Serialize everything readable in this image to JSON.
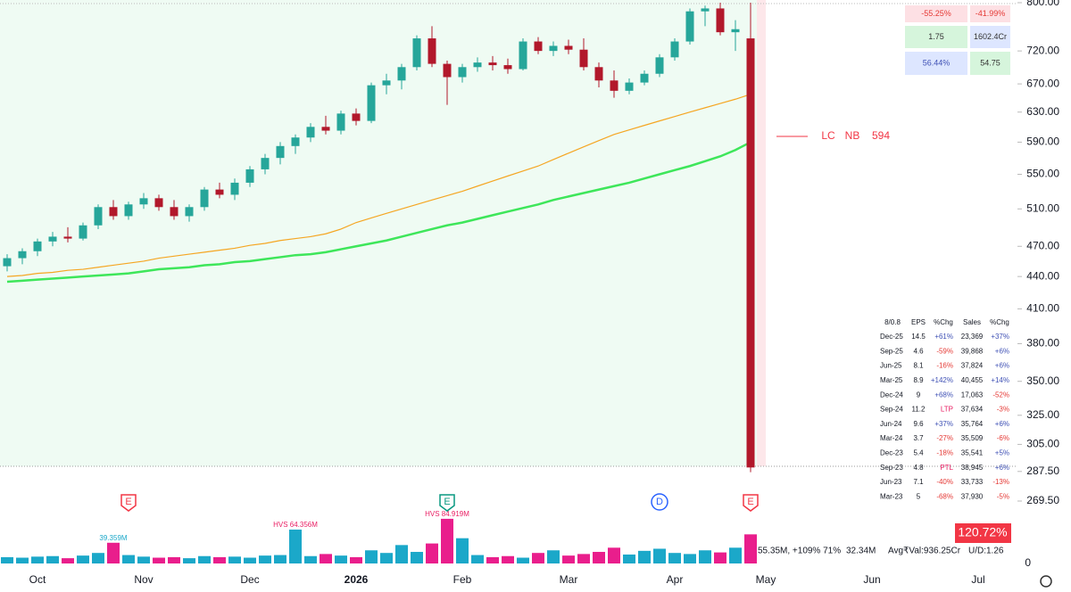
{
  "chart_data": {
    "type": "candlestick",
    "log": true,
    "ylim": [
      269.5,
      800
    ],
    "yticks": [
      {
        "value": 800,
        "label": "800.00"
      },
      {
        "value": 720,
        "label": "720.00"
      },
      {
        "value": 670,
        "label": "670.00"
      },
      {
        "value": 630,
        "label": "630.00"
      },
      {
        "value": 590,
        "label": "590.00"
      },
      {
        "value": 550,
        "label": "550.00"
      },
      {
        "value": 510,
        "label": "510.00"
      },
      {
        "value": 470,
        "label": "470.00"
      },
      {
        "value": 440,
        "label": "440.00"
      },
      {
        "value": 410,
        "label": "410.00"
      },
      {
        "value": 380,
        "label": "380.00"
      },
      {
        "value": 350,
        "label": "350.00"
      },
      {
        "value": 325,
        "label": "325.00"
      },
      {
        "value": 305,
        "label": "305.00"
      },
      {
        "value": 287.5,
        "label": "287.50"
      },
      {
        "value": 269.5,
        "label": "269.50"
      }
    ],
    "categories": [
      null,
      null,
      "Oct",
      null,
      null,
      null,
      null,
      null,
      null,
      "Nov",
      null,
      null,
      null,
      null,
      null,
      null,
      "Dec",
      null,
      null,
      null,
      null,
      null,
      null,
      "2026",
      null,
      null,
      null,
      null,
      null,
      null,
      "Feb",
      null,
      null,
      null,
      null,
      null,
      null,
      "Mar",
      null,
      null,
      null,
      null,
      null,
      null,
      "Apr",
      null,
      null,
      null,
      null,
      null,
      "May",
      null,
      null,
      null,
      null,
      null,
      null,
      "Jun",
      null,
      null,
      null,
      null,
      null,
      null,
      "Jul",
      null
    ],
    "up_color": "#26a69a",
    "down_color": "#b2182b",
    "open": [
      450,
      458,
      465,
      475,
      480,
      478,
      492,
      512,
      502,
      515,
      522,
      512,
      502,
      512,
      532,
      526,
      540,
      556,
      570,
      585,
      596,
      610,
      605,
      628,
      618,
      668,
      675,
      695,
      740,
      700,
      680,
      695,
      702,
      698,
      692,
      735,
      720,
      728,
      722,
      695,
      675,
      660,
      672,
      685,
      710,
      735,
      785,
      790,
      750,
      740,
      null,
      null,
      null,
      null,
      null,
      null,
      null,
      null,
      null,
      null,
      null,
      null,
      null,
      null,
      null,
      null
    ],
    "high": [
      462,
      468,
      478,
      485,
      490,
      495,
      515,
      520,
      518,
      528,
      526,
      520,
      515,
      535,
      540,
      545,
      560,
      575,
      590,
      600,
      615,
      625,
      632,
      635,
      672,
      685,
      700,
      745,
      760,
      705,
      700,
      710,
      712,
      708,
      740,
      742,
      735,
      738,
      740,
      702,
      690,
      678,
      690,
      715,
      740,
      790,
      795,
      800,
      770,
      800,
      null,
      null,
      null,
      null,
      null,
      null,
      null,
      null,
      null,
      null,
      null,
      null,
      null,
      null,
      null,
      null
    ],
    "low": [
      445,
      452,
      460,
      470,
      474,
      476,
      488,
      498,
      498,
      510,
      508,
      498,
      496,
      508,
      522,
      520,
      535,
      550,
      562,
      575,
      590,
      600,
      600,
      612,
      615,
      655,
      662,
      690,
      695,
      640,
      672,
      688,
      690,
      685,
      690,
      715,
      712,
      715,
      690,
      665,
      650,
      655,
      668,
      680,
      705,
      730,
      760,
      745,
      720,
      287,
      null,
      null,
      null,
      null,
      null,
      null,
      null,
      null,
      null,
      null,
      null,
      null,
      null,
      null,
      null,
      null
    ],
    "close": [
      458,
      465,
      475,
      480,
      478,
      492,
      512,
      502,
      515,
      522,
      512,
      502,
      512,
      532,
      526,
      540,
      556,
      570,
      585,
      596,
      610,
      605,
      628,
      618,
      668,
      675,
      695,
      740,
      700,
      680,
      695,
      702,
      698,
      692,
      735,
      720,
      728,
      722,
      695,
      675,
      660,
      672,
      685,
      710,
      735,
      785,
      790,
      750,
      755,
      290,
      null,
      null,
      null,
      null,
      null,
      null,
      null,
      null,
      null,
      null,
      null,
      null,
      null,
      null,
      null,
      null
    ],
    "series": [
      {
        "color": "#f5a623",
        "values": [
          440,
          441,
          443,
          444,
          446,
          447,
          449,
          451,
          453,
          455,
          458,
          460,
          462,
          464,
          466,
          468,
          471,
          473,
          476,
          478,
          480,
          483,
          488,
          495,
          500,
          505,
          510,
          515,
          520,
          525,
          530,
          536,
          542,
          548,
          554,
          560,
          568,
          576,
          584,
          592,
          600,
          606,
          612,
          618,
          624,
          630,
          636,
          642,
          648,
          655,
          null,
          null,
          null,
          null,
          null,
          null,
          null,
          null,
          null,
          null,
          null,
          null,
          null,
          null,
          null,
          null
        ]
      },
      {
        "color": "#3ee65a",
        "values": [
          435,
          436,
          437,
          438,
          439,
          440,
          441,
          442,
          443,
          445,
          447,
          448,
          449,
          451,
          452,
          454,
          455,
          457,
          459,
          461,
          462,
          464,
          467,
          470,
          473,
          476,
          480,
          484,
          488,
          492,
          495,
          499,
          503,
          507,
          511,
          515,
          520,
          524,
          528,
          532,
          536,
          540,
          545,
          550,
          555,
          560,
          566,
          572,
          580,
          590,
          null,
          null,
          null,
          null,
          null,
          null,
          null,
          null,
          null,
          null,
          null,
          null,
          null,
          null,
          null,
          null
        ]
      }
    ],
    "volume": {
      "ylim": [
        0,
        100
      ],
      "yticks": [
        0
      ],
      "up_color": "#1ba8c9",
      "down_color": "#e91e8c",
      "values": [
        12,
        11,
        13,
        14,
        10,
        15,
        20,
        39.359,
        16,
        13,
        11,
        12,
        10,
        14,
        12,
        13,
        11,
        15,
        16,
        64.356,
        14,
        18,
        15,
        12,
        25,
        20,
        35,
        22,
        38,
        84.919,
        48,
        16,
        12,
        14,
        11,
        20,
        25,
        15,
        18,
        22,
        30,
        17,
        24,
        28,
        20,
        18,
        25,
        21,
        30,
        55.35,
        null,
        null,
        null,
        null,
        null,
        null,
        null,
        null,
        null,
        null,
        null,
        null,
        null,
        null,
        null,
        null
      ],
      "value_labels": [
        null,
        null,
        null,
        null,
        null,
        null,
        null,
        "39.359M",
        null,
        null,
        null,
        null,
        null,
        null,
        null,
        null,
        null,
        null,
        null,
        "HVS 64.356M",
        null,
        null,
        null,
        null,
        null,
        null,
        null,
        null,
        null,
        "HVS 84.919M",
        null,
        null,
        null,
        null,
        null,
        null,
        null,
        null,
        null,
        null,
        null,
        null,
        null,
        null,
        null,
        null,
        null,
        null,
        null,
        null,
        null,
        null,
        null,
        null,
        null,
        null,
        null,
        null,
        null,
        null,
        null,
        null,
        null,
        null,
        null,
        null
      ]
    },
    "event_labels": [
      null,
      null,
      null,
      null,
      null,
      null,
      null,
      null,
      "E",
      null,
      null,
      null,
      null,
      null,
      null,
      null,
      null,
      null,
      null,
      null,
      null,
      null,
      null,
      null,
      null,
      null,
      null,
      null,
      null,
      "E",
      null,
      null,
      null,
      null,
      null,
      null,
      null,
      null,
      null,
      null,
      null,
      null,
      null,
      "D",
      null,
      null,
      null,
      null,
      null,
      "E",
      null,
      null,
      null,
      null,
      null,
      null,
      null,
      null,
      null,
      null,
      null,
      null,
      null,
      null,
      null,
      null
    ],
    "annotation": [
      "LC",
      "NB",
      "594"
    ]
  },
  "stats": [
    [
      "-55.25%",
      "-41.99%"
    ],
    [
      "1.75",
      "1602.4Cr"
    ],
    [
      "56.44%",
      "54.75"
    ]
  ],
  "fundamentals": {
    "header": [
      "8/0.8",
      "EPS",
      "%Chg",
      "Sales",
      "%Chg"
    ],
    "rows": [
      [
        "Dec-25",
        "14.5",
        "+61%",
        "23,369",
        "+37%"
      ],
      [
        "Sep-25",
        "4.6",
        "-59%",
        "39,868",
        "+6%"
      ],
      [
        "Jun-25",
        "8.1",
        "-16%",
        "37,824",
        "+6%"
      ],
      [
        "Mar-25",
        "8.9",
        "+142%",
        "40,455",
        "+14%"
      ],
      [
        "Dec-24",
        "9",
        "+68%",
        "17,063",
        "-52%"
      ],
      [
        "Sep-24",
        "11.2",
        "LTP",
        "37,634",
        "-3%"
      ],
      [
        "Jun-24",
        "9.6",
        "+37%",
        "35,764",
        "+6%"
      ],
      [
        "Mar-24",
        "3.7",
        "-27%",
        "35,509",
        "-6%"
      ],
      [
        "Dec-23",
        "5.4",
        "-18%",
        "35,541",
        "+5%"
      ],
      [
        "Sep-23",
        "4.8",
        "PTL",
        "38,945",
        "+6%"
      ],
      [
        "Jun-23",
        "7.1",
        "-40%",
        "33,733",
        "-13%"
      ],
      [
        "Mar-23",
        "5",
        "-68%",
        "37,930",
        "-5%"
      ]
    ]
  },
  "status_bar": [
    "55.35M, +109% 71%",
    "32.34M",
    "Avg₹Val:936.25Cr",
    "U/D:1.26"
  ],
  "badge": "120.72%"
}
